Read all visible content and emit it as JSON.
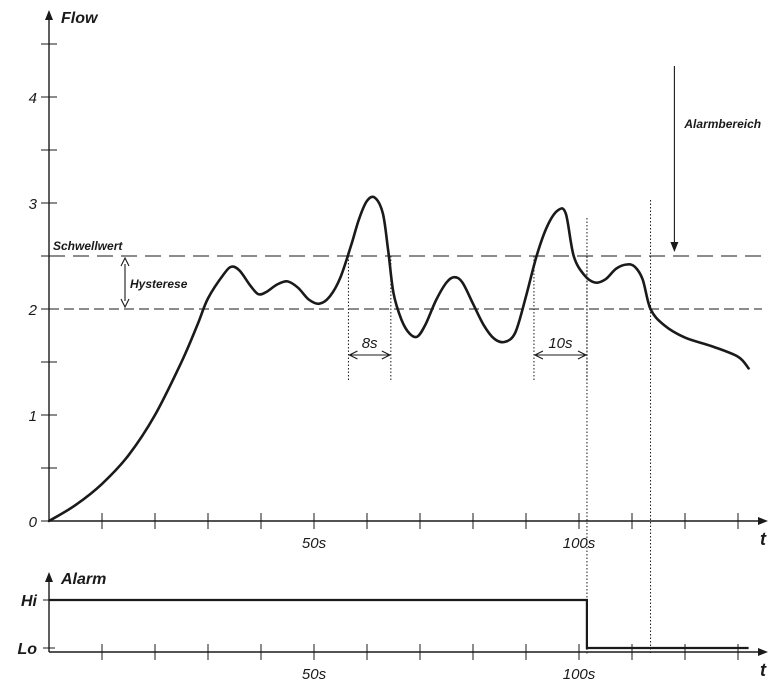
{
  "colors": {
    "ink": "#1a1a1a",
    "background": "#ffffff"
  },
  "chart_data": [
    {
      "type": "line",
      "ylabel": "Flow",
      "xlabel": "t",
      "xlim": [
        0,
        135
      ],
      "ylim": [
        0,
        4.5
      ],
      "y_ticks": [
        0,
        1,
        2,
        3,
        4
      ],
      "y_tick_labels": [
        "0",
        "1",
        "2",
        "3",
        "4"
      ],
      "x_ticks_minor_step": 10,
      "x_tick_labels": [
        {
          "x": 50,
          "label": "50s"
        },
        {
          "x": 100,
          "label": "100s"
        }
      ],
      "grid": false,
      "series": [
        {
          "values": [
            [
              0,
              0
            ],
            [
              5,
              0.15
            ],
            [
              10,
              0.35
            ],
            [
              15,
              0.62
            ],
            [
              20,
              1.0
            ],
            [
              25,
              1.5
            ],
            [
              28,
              1.85
            ],
            [
              30,
              2.1
            ],
            [
              33,
              2.33
            ],
            [
              34.5,
              2.4
            ],
            [
              36,
              2.36
            ],
            [
              38,
              2.22
            ],
            [
              39.5,
              2.14
            ],
            [
              41,
              2.16
            ],
            [
              43,
              2.23
            ],
            [
              45,
              2.26
            ],
            [
              47,
              2.2
            ],
            [
              49,
              2.09
            ],
            [
              51,
              2.05
            ],
            [
              53,
              2.12
            ],
            [
              55,
              2.3
            ],
            [
              57,
              2.6
            ],
            [
              58.5,
              2.85
            ],
            [
              60,
              3.02
            ],
            [
              61.5,
              3.05
            ],
            [
              63,
              2.9
            ],
            [
              64,
              2.55
            ],
            [
              65,
              2.15
            ],
            [
              66.5,
              1.9
            ],
            [
              68,
              1.77
            ],
            [
              69.5,
              1.74
            ],
            [
              71,
              1.85
            ],
            [
              73,
              2.08
            ],
            [
              75,
              2.25
            ],
            [
              76.5,
              2.3
            ],
            [
              78,
              2.25
            ],
            [
              80,
              2.05
            ],
            [
              82,
              1.85
            ],
            [
              84,
              1.72
            ],
            [
              86,
              1.69
            ],
            [
              88,
              1.78
            ],
            [
              90,
              2.12
            ],
            [
              92,
              2.5
            ],
            [
              94,
              2.78
            ],
            [
              96,
              2.93
            ],
            [
              97.5,
              2.9
            ],
            [
              99,
              2.5
            ],
            [
              101,
              2.32
            ],
            [
              103,
              2.25
            ],
            [
              105,
              2.28
            ],
            [
              107,
              2.38
            ],
            [
              109,
              2.42
            ],
            [
              110.5,
              2.4
            ],
            [
              112,
              2.28
            ],
            [
              113.5,
              2.0
            ],
            [
              116,
              1.85
            ],
            [
              120,
              1.73
            ],
            [
              125,
              1.65
            ],
            [
              130,
              1.55
            ],
            [
              132,
              1.44
            ]
          ]
        }
      ],
      "reference_lines": [
        {
          "name": "Schwellwert",
          "y": 2.5
        },
        {
          "y": 2.0
        }
      ],
      "annotations": [
        {
          "text": "Schwellwert",
          "y": 2.5
        },
        {
          "text": "Hysterese",
          "y_range": [
            2.0,
            2.5
          ]
        },
        {
          "text": "8s",
          "x_range": [
            56.5,
            64.5
          ]
        },
        {
          "text": "10s",
          "x_range": [
            91.5,
            101.5
          ]
        },
        {
          "text": "Alarmbereich",
          "x": 118,
          "points_to_y": 2.5
        }
      ]
    },
    {
      "type": "line",
      "ylabel": "Alarm",
      "xlabel": "t",
      "xlim": [
        0,
        135
      ],
      "y_categories": [
        "Lo",
        "Hi"
      ],
      "x_ticks_minor_step": 10,
      "x_tick_labels": [
        {
          "x": 50,
          "label": "50s"
        },
        {
          "x": 100,
          "label": "100s"
        }
      ],
      "series": [
        {
          "values": [
            [
              0,
              "Hi"
            ],
            [
              101.5,
              "Hi"
            ],
            [
              101.5,
              "Lo"
            ],
            [
              132,
              "Lo"
            ]
          ]
        }
      ]
    }
  ]
}
